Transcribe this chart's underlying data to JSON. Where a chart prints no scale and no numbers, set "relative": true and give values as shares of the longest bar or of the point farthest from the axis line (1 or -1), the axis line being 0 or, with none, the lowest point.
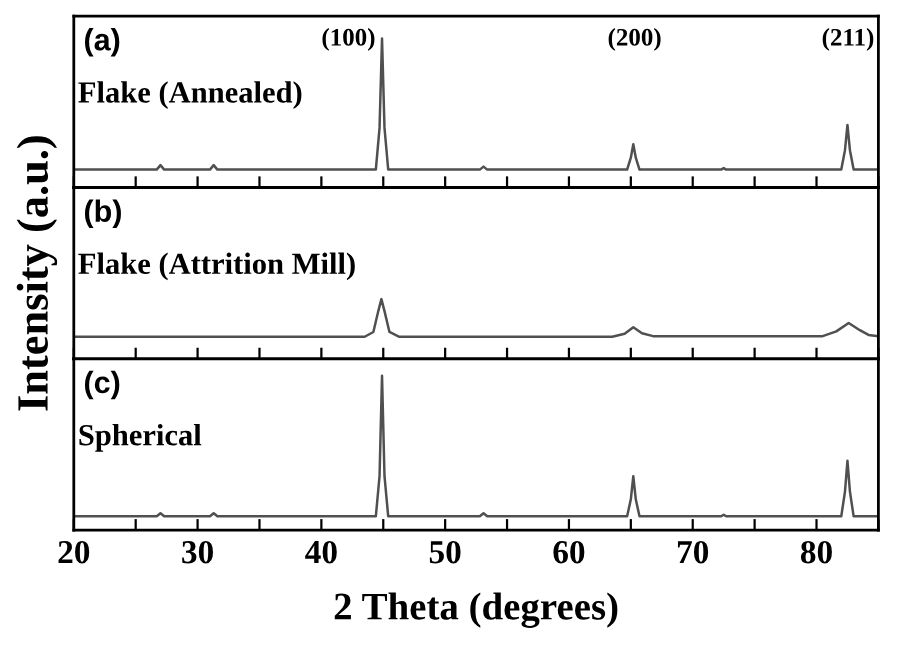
{
  "chart_data": [
    {
      "type": "line",
      "relative": true,
      "xlim": [
        20,
        85
      ],
      "xticks": [
        20,
        {
          "value": 25,
          "label": null
        },
        30,
        {
          "value": 35,
          "label": null
        },
        40,
        {
          "value": 45,
          "label": null
        },
        50,
        {
          "value": 55,
          "label": null
        },
        60,
        {
          "value": 65,
          "label": null
        },
        70,
        {
          "value": 75,
          "label": null
        },
        80,
        {
          "value": 85,
          "label": null
        }
      ],
      "tick_labels": false,
      "line_style": "solid",
      "marker": "none",
      "annotations": [
        "(a)",
        "Flake (Annealed)",
        "(100)",
        "(200)",
        "(211)"
      ],
      "x": [
        20,
        26.7,
        27,
        27.3,
        31,
        31.3,
        31.6,
        44.4,
        44.7,
        44.9,
        45.1,
        45.4,
        52.8,
        53.1,
        53.4,
        64.7,
        65.0,
        65.2,
        65.4,
        65.7,
        72.3,
        72.5,
        72.7,
        82.0,
        82.3,
        82.5,
        82.7,
        83.0,
        85
      ],
      "series": [
        {
          "color": "#505050",
          "values": [
            0.12,
            0.12,
            0.15,
            0.12,
            0.12,
            0.15,
            0.12,
            0.12,
            0.4,
            1,
            0.4,
            0.12,
            0.12,
            0.14,
            0.12,
            0.12,
            0.2,
            0.29,
            0.2,
            0.12,
            0.12,
            0.13,
            0.12,
            0.12,
            0.25,
            0.42,
            0.25,
            0.12,
            0.12
          ]
        }
      ]
    },
    {
      "type": "line",
      "relative": true,
      "xlim": [
        20,
        85
      ],
      "xticks": [
        20,
        {
          "value": 25,
          "label": null
        },
        30,
        {
          "value": 35,
          "label": null
        },
        40,
        {
          "value": 45,
          "label": null
        },
        50,
        {
          "value": 55,
          "label": null
        },
        60,
        {
          "value": 65,
          "label": null
        },
        70,
        {
          "value": 75,
          "label": null
        },
        80,
        {
          "value": 85,
          "label": null
        }
      ],
      "tick_labels": false,
      "line_style": "solid",
      "marker": "none",
      "ylabel": "Intensity (a.u.)",
      "annotations": [
        "(b)",
        "Flake (Attrition Mill)"
      ],
      "x": [
        20,
        43.5,
        44.2,
        44.6,
        44.85,
        45.1,
        45.5,
        46.3,
        63.5,
        64.5,
        65.2,
        65.9,
        66.8,
        80.5,
        81.6,
        82.6,
        83.5,
        84.2,
        85
      ],
      "series": [
        {
          "color": "#505050",
          "values": [
            0.37,
            0.37,
            0.45,
            0.8,
            1,
            0.8,
            0.45,
            0.37,
            0.37,
            0.42,
            0.53,
            0.43,
            0.38,
            0.38,
            0.46,
            0.6,
            0.48,
            0.4,
            0.38
          ]
        }
      ]
    },
    {
      "type": "line",
      "relative": true,
      "xlim": [
        20,
        85
      ],
      "xticks": [
        20,
        {
          "value": 25,
          "label": null
        },
        30,
        {
          "value": 35,
          "label": null
        },
        40,
        {
          "value": 45,
          "label": null
        },
        50,
        {
          "value": 55,
          "label": null
        },
        60,
        {
          "value": 65,
          "label": null
        },
        70,
        {
          "value": 75,
          "label": null
        },
        80,
        {
          "value": 85,
          "label": null
        }
      ],
      "tick_labels": "x",
      "line_style": "solid",
      "marker": "none",
      "xlabel": "2 Theta (degrees)",
      "annotations": [
        "(c)",
        "Spherical"
      ],
      "x": [
        20,
        26.7,
        27,
        27.3,
        31,
        31.3,
        31.6,
        44.4,
        44.7,
        44.9,
        45.1,
        45.4,
        52.8,
        53.1,
        53.4,
        64.7,
        65.0,
        65.2,
        65.4,
        65.7,
        72.3,
        72.5,
        72.7,
        82.0,
        82.3,
        82.5,
        82.7,
        83.0,
        85
      ],
      "series": [
        {
          "color": "#505050",
          "values": [
            0.09,
            0.09,
            0.11,
            0.09,
            0.09,
            0.11,
            0.09,
            0.09,
            0.35,
            1,
            0.35,
            0.09,
            0.09,
            0.11,
            0.09,
            0.09,
            0.2,
            0.35,
            0.2,
            0.09,
            0.09,
            0.1,
            0.09,
            0.09,
            0.25,
            0.45,
            0.25,
            0.09,
            0.09
          ]
        }
      ]
    }
  ]
}
